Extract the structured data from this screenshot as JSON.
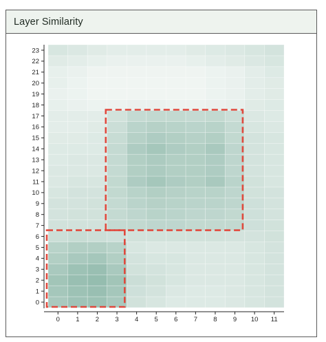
{
  "panel": {
    "title": "Layer Similarity"
  },
  "chart_data": {
    "type": "heatmap",
    "title": "Layer Similarity",
    "xlabel": "",
    "ylabel": "",
    "x_ticks": [
      0,
      1,
      2,
      3,
      4,
      5,
      6,
      7,
      8,
      9,
      10,
      11
    ],
    "y_ticks": [
      0,
      1,
      2,
      3,
      4,
      5,
      6,
      7,
      8,
      9,
      10,
      11,
      12,
      13,
      14,
      15,
      16,
      17,
      18,
      19,
      20,
      21,
      22,
      23
    ],
    "value_range": [
      0,
      1
    ],
    "color_low": "#f6f9f7",
    "color_high": "#7aac9b",
    "grid": true,
    "values": [
      [
        0.62,
        0.7,
        0.72,
        0.62,
        0.3,
        0.25,
        0.2,
        0.2,
        0.2,
        0.22,
        0.25,
        0.28
      ],
      [
        0.65,
        0.72,
        0.75,
        0.65,
        0.32,
        0.28,
        0.22,
        0.2,
        0.2,
        0.22,
        0.25,
        0.28
      ],
      [
        0.68,
        0.75,
        0.78,
        0.68,
        0.35,
        0.3,
        0.25,
        0.22,
        0.22,
        0.22,
        0.25,
        0.28
      ],
      [
        0.62,
        0.72,
        0.75,
        0.62,
        0.3,
        0.28,
        0.25,
        0.22,
        0.22,
        0.22,
        0.25,
        0.28
      ],
      [
        0.55,
        0.62,
        0.65,
        0.55,
        0.28,
        0.25,
        0.25,
        0.22,
        0.22,
        0.22,
        0.25,
        0.28
      ],
      [
        0.5,
        0.55,
        0.55,
        0.5,
        0.25,
        0.22,
        0.22,
        0.22,
        0.22,
        0.22,
        0.25,
        0.28
      ],
      [
        0.35,
        0.38,
        0.35,
        0.32,
        0.3,
        0.3,
        0.3,
        0.3,
        0.3,
        0.28,
        0.28,
        0.3
      ],
      [
        0.3,
        0.3,
        0.3,
        0.4,
        0.42,
        0.45,
        0.45,
        0.42,
        0.42,
        0.42,
        0.32,
        0.3
      ],
      [
        0.28,
        0.3,
        0.3,
        0.4,
        0.45,
        0.5,
        0.48,
        0.45,
        0.45,
        0.42,
        0.32,
        0.28
      ],
      [
        0.28,
        0.28,
        0.3,
        0.4,
        0.48,
        0.52,
        0.5,
        0.48,
        0.48,
        0.45,
        0.32,
        0.28
      ],
      [
        0.25,
        0.28,
        0.28,
        0.42,
        0.5,
        0.55,
        0.52,
        0.5,
        0.5,
        0.45,
        0.3,
        0.28
      ],
      [
        0.22,
        0.25,
        0.25,
        0.42,
        0.58,
        0.65,
        0.58,
        0.55,
        0.62,
        0.48,
        0.3,
        0.25
      ],
      [
        0.22,
        0.22,
        0.22,
        0.4,
        0.55,
        0.6,
        0.55,
        0.55,
        0.58,
        0.45,
        0.28,
        0.25
      ],
      [
        0.2,
        0.22,
        0.22,
        0.4,
        0.55,
        0.6,
        0.55,
        0.55,
        0.58,
        0.45,
        0.28,
        0.25
      ],
      [
        0.2,
        0.2,
        0.2,
        0.4,
        0.58,
        0.65,
        0.58,
        0.55,
        0.62,
        0.45,
        0.28,
        0.25
      ],
      [
        0.18,
        0.18,
        0.2,
        0.38,
        0.52,
        0.58,
        0.55,
        0.52,
        0.55,
        0.42,
        0.28,
        0.25
      ],
      [
        0.15,
        0.15,
        0.18,
        0.35,
        0.48,
        0.52,
        0.5,
        0.48,
        0.5,
        0.4,
        0.25,
        0.22
      ],
      [
        0.15,
        0.15,
        0.15,
        0.3,
        0.4,
        0.42,
        0.42,
        0.4,
        0.42,
        0.35,
        0.22,
        0.2
      ],
      [
        0.12,
        0.1,
        0.08,
        0.08,
        0.1,
        0.1,
        0.08,
        0.08,
        0.1,
        0.12,
        0.18,
        0.2
      ],
      [
        0.1,
        0.08,
        0.05,
        0.05,
        0.05,
        0.05,
        0.05,
        0.05,
        0.08,
        0.1,
        0.15,
        0.18
      ],
      [
        0.12,
        0.08,
        0.05,
        0.05,
        0.05,
        0.05,
        0.05,
        0.05,
        0.08,
        0.1,
        0.15,
        0.18
      ],
      [
        0.12,
        0.1,
        0.06,
        0.06,
        0.06,
        0.06,
        0.06,
        0.06,
        0.08,
        0.1,
        0.15,
        0.2
      ],
      [
        0.18,
        0.15,
        0.12,
        0.1,
        0.1,
        0.1,
        0.1,
        0.12,
        0.15,
        0.18,
        0.22,
        0.25
      ],
      [
        0.25,
        0.22,
        0.18,
        0.15,
        0.15,
        0.15,
        0.15,
        0.18,
        0.2,
        0.22,
        0.25,
        0.28
      ]
    ],
    "highlight_boxes": [
      {
        "x_range": [
          0,
          3
        ],
        "y_range": [
          0,
          6
        ],
        "color": "#e0493d",
        "style": "dashed"
      },
      {
        "x_range": [
          3,
          9
        ],
        "y_range": [
          7,
          17
        ],
        "color": "#e0493d",
        "style": "dashed"
      }
    ]
  }
}
